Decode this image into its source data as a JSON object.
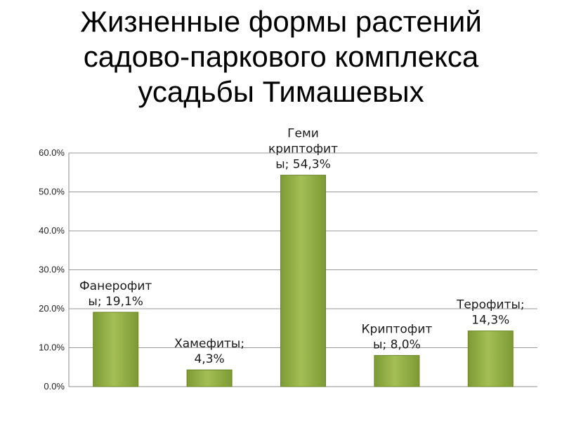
{
  "title_lines": [
    "Жизненные формы растений",
    "садово-паркового комплекса",
    "усадьбы Тимашевых"
  ],
  "chart_data": {
    "type": "bar",
    "categories": [
      "Фанерофиты",
      "Хамефиты",
      "Гемикриптофиты",
      "Криптофиты",
      "Терофиты"
    ],
    "values": [
      19.1,
      4.3,
      54.3,
      8.0,
      14.3
    ],
    "data_labels": [
      [
        "Фанерофит",
        "ы; 19,1%"
      ],
      [
        "Хамефиты;",
        "4,3%"
      ],
      [
        "Геми",
        "криптофит",
        "ы; 54,3%"
      ],
      [
        "Криптофит",
        "ы; 8,0%"
      ],
      [
        "Терофиты;",
        "14,3%"
      ]
    ],
    "yticks": [
      "0.0%",
      "10.0%",
      "20.0%",
      "30.0%",
      "40.0%",
      "50.0%",
      "60.0%"
    ],
    "ylim": [
      0,
      60
    ],
    "grid": true,
    "bar_color": "#7d9a34",
    "bar_highlight": "#a3bf55"
  }
}
